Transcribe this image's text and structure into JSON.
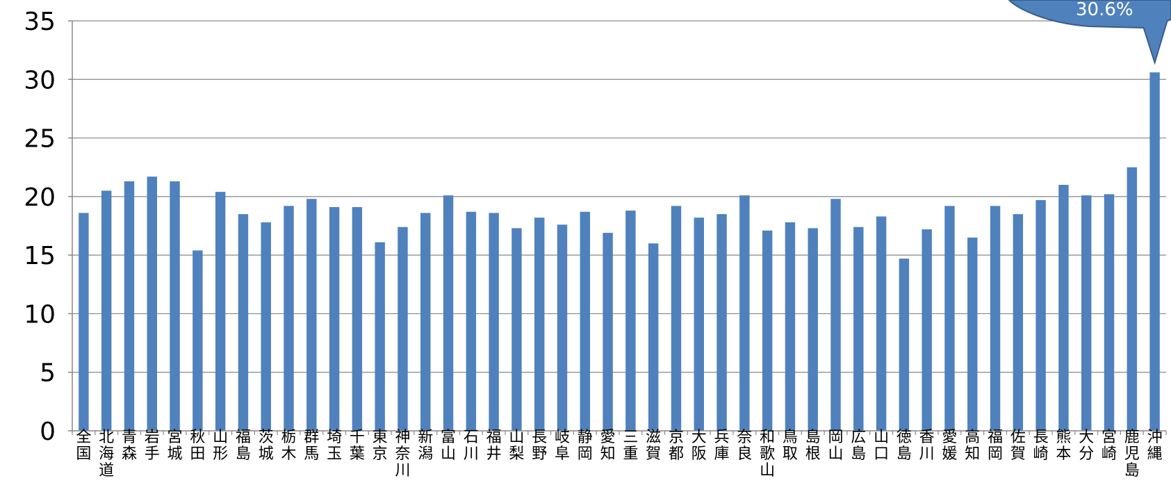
{
  "chart_data": {
    "type": "bar",
    "categories": [
      "全国",
      "北海道",
      "青森",
      "岩手",
      "宮城",
      "秋田",
      "山形",
      "福島",
      "茨城",
      "栃木",
      "群馬",
      "埼玉",
      "千葉",
      "東京",
      "神奈川",
      "新潟",
      "富山",
      "石川",
      "福井",
      "山梨",
      "長野",
      "岐阜",
      "静岡",
      "愛知",
      "三重",
      "滋賀",
      "京都",
      "大阪",
      "兵庫",
      "奈良",
      "和歌山",
      "鳥取",
      "島根",
      "岡山",
      "広島",
      "山口",
      "徳島",
      "香川",
      "愛媛",
      "高知",
      "福岡",
      "佐賀",
      "長崎",
      "熊本",
      "大分",
      "宮崎",
      "鹿児島",
      "沖縄"
    ],
    "values": [
      18.6,
      20.5,
      21.3,
      21.7,
      21.3,
      15.4,
      20.4,
      18.5,
      17.8,
      19.2,
      19.8,
      19.1,
      19.1,
      16.1,
      17.4,
      18.6,
      20.1,
      18.7,
      18.6,
      17.3,
      18.2,
      17.6,
      18.7,
      16.9,
      18.8,
      16.0,
      19.2,
      18.2,
      18.5,
      20.1,
      17.1,
      17.8,
      17.3,
      19.8,
      17.4,
      18.3,
      14.7,
      17.2,
      19.2,
      16.5,
      19.2,
      18.5,
      19.7,
      21.0,
      20.1,
      20.2,
      22.5,
      30.6
    ],
    "ylim": [
      0,
      35
    ],
    "yticks": [
      0,
      5,
      10,
      15,
      20,
      25,
      30,
      35
    ],
    "grid": true,
    "bar_color": "#4f81bd",
    "gridline_color": "#868686",
    "title": "",
    "xlabel": "",
    "ylabel": "",
    "annotation": {
      "text": "30.6%",
      "target_category": "沖縄",
      "fill_color": "#4f81bd",
      "border_color": "#385d8a",
      "text_color": "#ffffff"
    }
  }
}
